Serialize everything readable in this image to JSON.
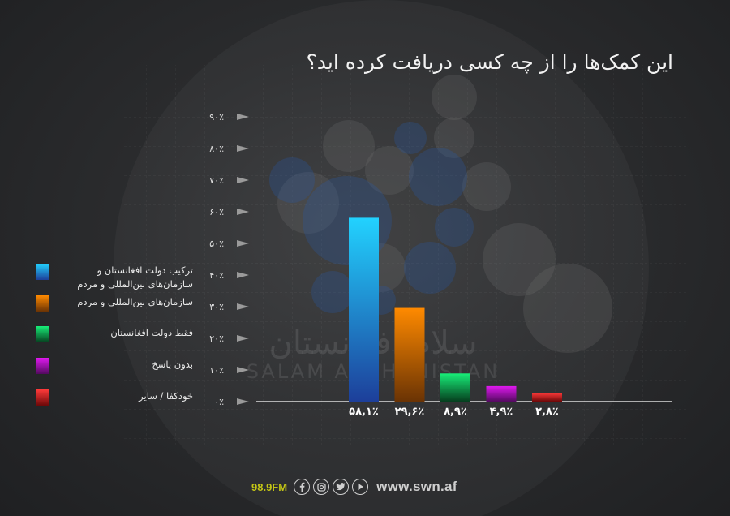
{
  "title": "این کمک‌ها را از چه کسی دریافت کرده اید؟",
  "chart_data": {
    "type": "bar",
    "title": "این کمک‌ها را از چه کسی دریافت کرده اید؟",
    "categories": [
      "ترکیب دولت افغانستان و سازمان‌های بین‌المللی و مردم",
      "سازمان‌های بین‌المللی و مردم",
      "فقط دولت افغانستان",
      "بدون پاسخ",
      "خودکفا / سایر"
    ],
    "values": [
      58.1,
      29.6,
      8.9,
      4.9,
      2.8
    ],
    "value_labels": [
      "۵۸,۱٪",
      "۲۹,۶٪",
      "۸,۹٪",
      "۴,۹٪",
      "۲,۸٪"
    ],
    "ylim": [
      0,
      90
    ],
    "ytick_values": [
      0,
      10,
      20,
      30,
      40,
      50,
      60,
      70,
      80,
      90
    ],
    "ytick_labels": [
      "۰٪",
      "۱۰٪",
      "۲۰٪",
      "۳۰٪",
      "۴۰٪",
      "۵۰٪",
      "۶۰٪",
      "۷۰٪",
      "۸۰٪",
      "۹۰٪"
    ],
    "colors": [
      [
        "#22d2ff",
        "#1d3f9a"
      ],
      [
        "#ff8a00",
        "#6a3304"
      ],
      [
        "#18ee78",
        "#063e1e"
      ],
      [
        "#e019f0",
        "#520a5e"
      ],
      [
        "#ff3a3a",
        "#6b0808"
      ]
    ],
    "grid": true,
    "legend_position": "left"
  },
  "legend": [
    {
      "label": "ترکیب دولت افغانستان و سازمان‌های بین‌المللی و مردم"
    },
    {
      "label": "سازمان‌های بین‌المللی و مردم"
    },
    {
      "label": "فقط دولت افغانستان"
    },
    {
      "label": "بدون پاسخ"
    },
    {
      "label": "خودکفا / سایر"
    }
  ],
  "watermark": {
    "fa": "سلام افغانستان",
    "en": "SALAM AFGHANISTAN"
  },
  "footer": {
    "frequency": "98.9FM",
    "website": "www.swn.af",
    "icons": [
      "facebook-icon",
      "instagram-icon",
      "twitter-icon",
      "play-icon"
    ]
  }
}
